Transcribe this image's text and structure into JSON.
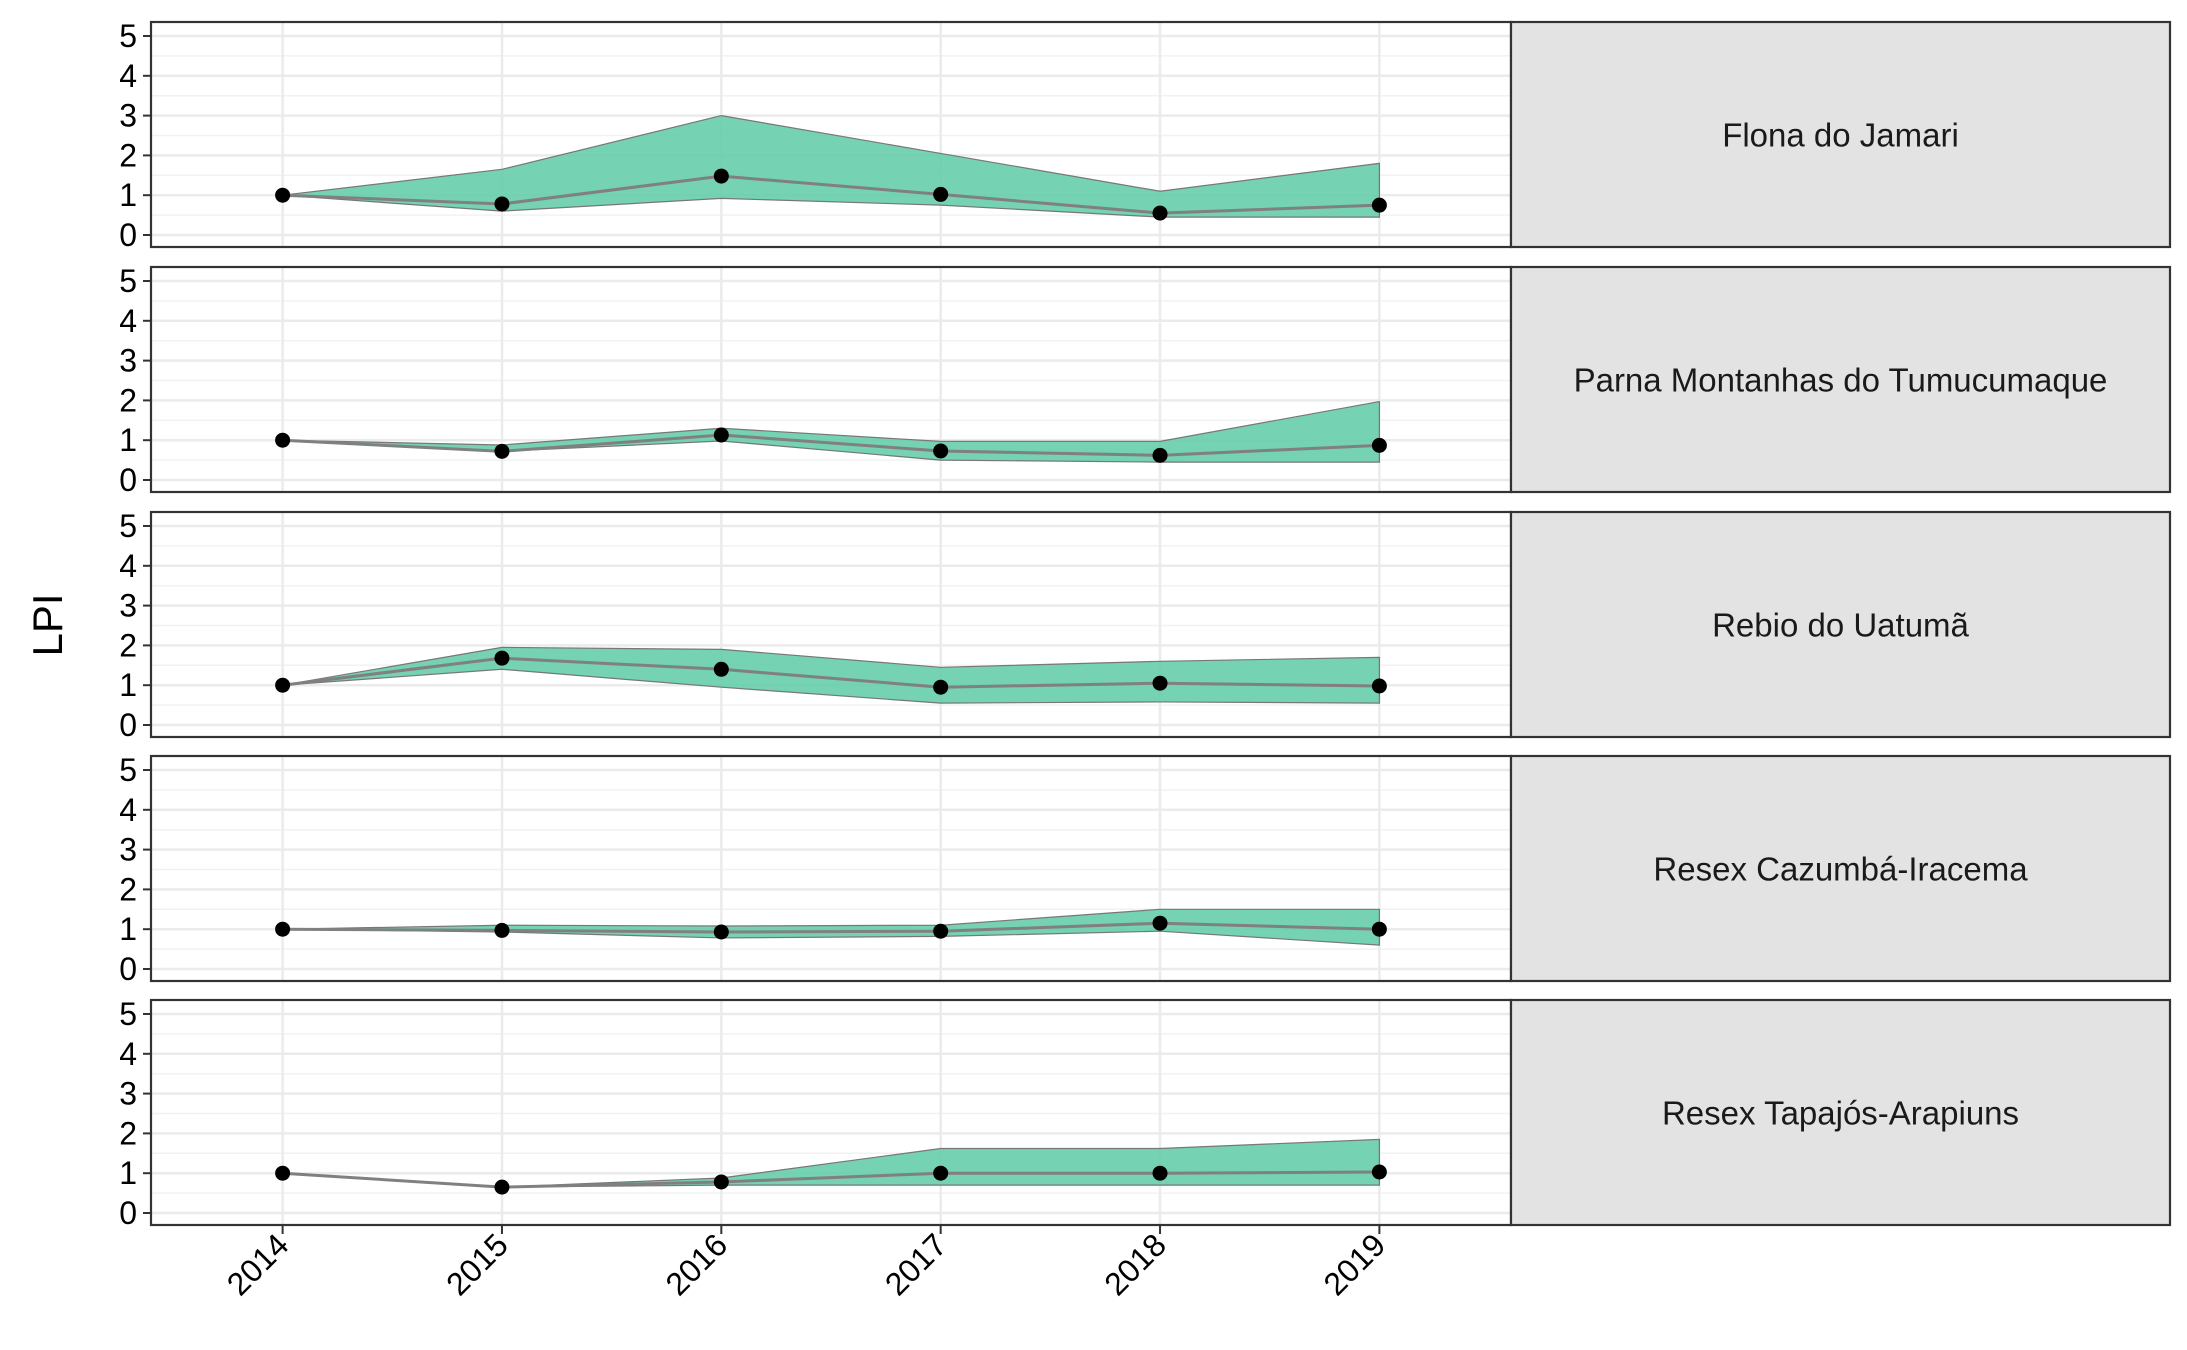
{
  "chart_data": {
    "type": "line",
    "ylabel": "LPI",
    "xlabel": "",
    "ylim": [
      0,
      5
    ],
    "yticks": [
      "0",
      "1",
      "2",
      "3",
      "4",
      "5"
    ],
    "x": [
      "2014",
      "2015",
      "2016",
      "2017",
      "2018",
      "2019"
    ],
    "grid": true,
    "colors": {
      "band": "#66CDAA",
      "line": "#808080",
      "point": "#000000",
      "strip": "#E3E3E3",
      "grid": "#EBEBEB"
    },
    "panels": [
      {
        "label": "Flona do Jamari",
        "values": [
          1.0,
          0.78,
          1.48,
          1.02,
          0.55,
          0.75
        ],
        "lower": [
          1.0,
          0.6,
          0.92,
          0.75,
          0.45,
          0.45
        ],
        "upper": [
          1.0,
          1.65,
          3.0,
          2.05,
          1.1,
          1.8
        ]
      },
      {
        "label": "Parna Montanhas do Tumucumaque",
        "values": [
          1.0,
          0.72,
          1.13,
          0.73,
          0.62,
          0.87
        ],
        "lower": [
          1.0,
          0.72,
          0.98,
          0.5,
          0.45,
          0.45
        ],
        "upper": [
          1.0,
          0.88,
          1.3,
          0.97,
          0.97,
          1.97
        ]
      },
      {
        "label": "Rebio do Uatumã",
        "values": [
          1.0,
          1.68,
          1.4,
          0.95,
          1.05,
          0.98
        ],
        "lower": [
          1.0,
          1.4,
          0.95,
          0.55,
          0.58,
          0.55
        ],
        "upper": [
          1.0,
          1.95,
          1.9,
          1.45,
          1.6,
          1.7
        ]
      },
      {
        "label": "Resex Cazumbá-Iracema",
        "values": [
          1.0,
          0.97,
          0.93,
          0.95,
          1.15,
          1.0
        ],
        "lower": [
          1.0,
          0.93,
          0.78,
          0.82,
          0.95,
          0.6
        ],
        "upper": [
          1.0,
          1.1,
          1.08,
          1.1,
          1.5,
          1.5
        ]
      },
      {
        "label": "Resex Tapajós-Arapiuns",
        "values": [
          1.0,
          0.65,
          0.78,
          1.0,
          1.0,
          1.03
        ],
        "lower": [
          1.0,
          0.65,
          0.7,
          0.7,
          0.7,
          0.7
        ],
        "upper": [
          1.0,
          0.65,
          0.88,
          1.62,
          1.62,
          1.85
        ]
      }
    ]
  }
}
